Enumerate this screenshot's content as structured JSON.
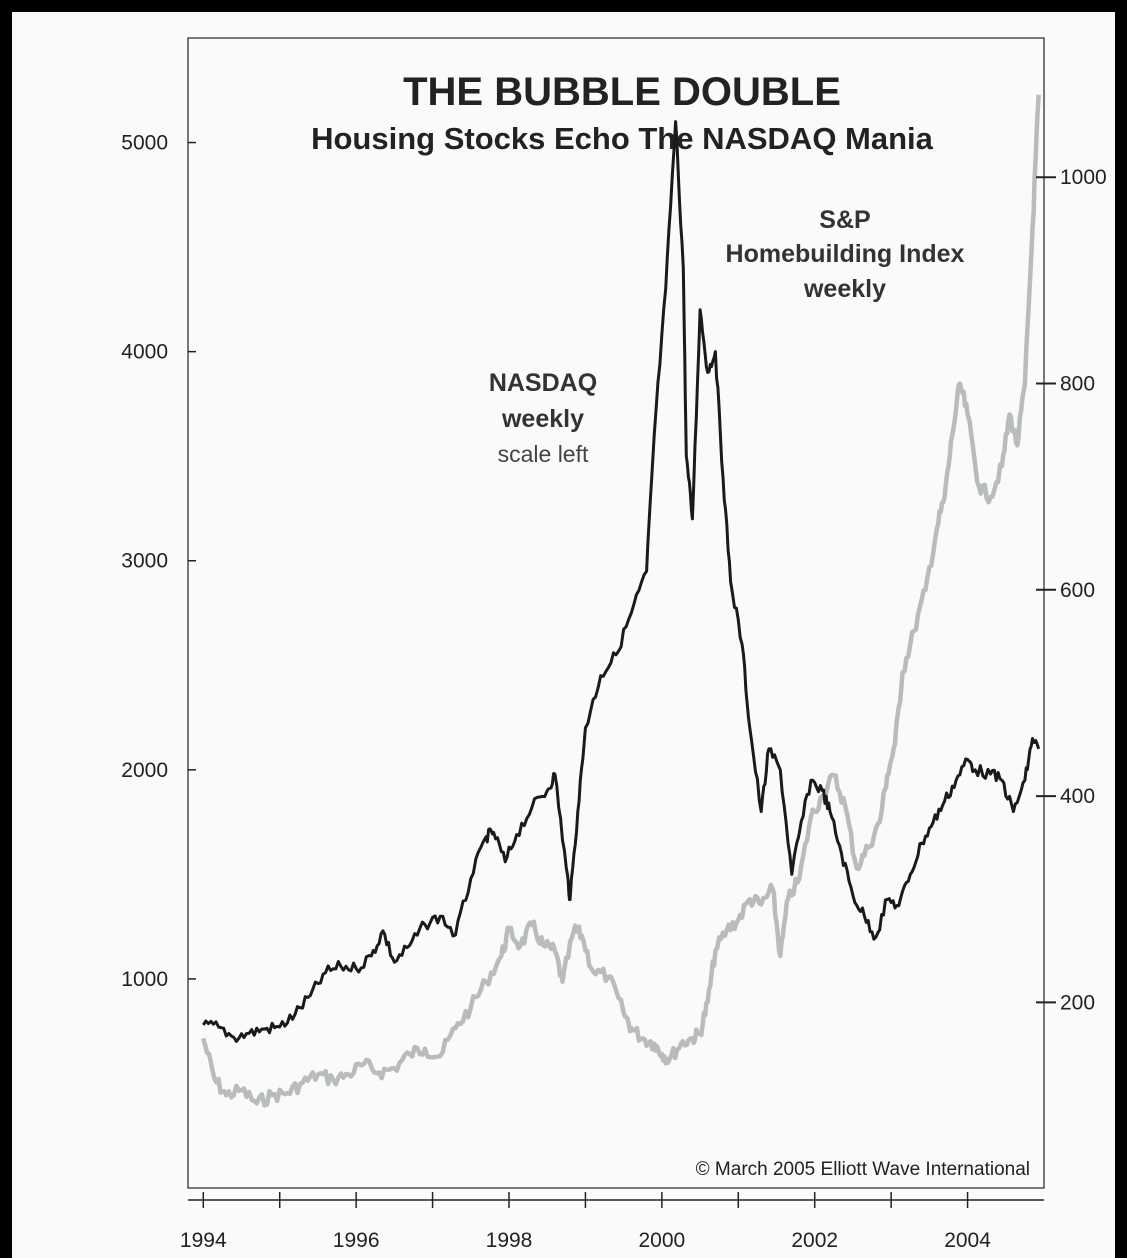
{
  "chart_data": {
    "type": "line",
    "title": "THE BUBBLE DOUBLE",
    "subtitle": "Housing Stocks Echo The NASDAQ Mania",
    "x_range": [
      1993.8,
      2005.0
    ],
    "x_ticks": [
      "1994",
      "1996",
      "1998",
      "2000",
      "2002",
      "2004"
    ],
    "x_tick_values": [
      1994,
      1996,
      1998,
      2000,
      2002,
      2004
    ],
    "y_left": {
      "range": [
        0,
        5500
      ],
      "ticks": [
        "1000",
        "2000",
        "3000",
        "4000",
        "5000"
      ],
      "tick_values": [
        1000,
        2000,
        3000,
        4000,
        5000
      ]
    },
    "y_right": {
      "range": [
        20,
        1135
      ],
      "ticks": [
        "200",
        "400",
        "600",
        "800",
        "1000"
      ],
      "tick_values": [
        200,
        400,
        600,
        800,
        1000
      ]
    },
    "grid": false,
    "series": [
      {
        "name": "NASDAQ",
        "label_lines": [
          "NASDAQ",
          "weekly",
          "scale left"
        ],
        "axis": "left",
        "color": "#1a1a1a",
        "points": [
          [
            1994.0,
            780
          ],
          [
            1994.2,
            770
          ],
          [
            1994.4,
            720
          ],
          [
            1994.6,
            740
          ],
          [
            1994.8,
            760
          ],
          [
            1995.0,
            770
          ],
          [
            1995.2,
            830
          ],
          [
            1995.4,
            920
          ],
          [
            1995.6,
            1030
          ],
          [
            1995.8,
            1060
          ],
          [
            1996.0,
            1050
          ],
          [
            1996.2,
            1110
          ],
          [
            1996.35,
            1230
          ],
          [
            1996.5,
            1080
          ],
          [
            1996.7,
            1160
          ],
          [
            1996.9,
            1260
          ],
          [
            1997.1,
            1300
          ],
          [
            1997.3,
            1210
          ],
          [
            1997.5,
            1480
          ],
          [
            1997.7,
            1680
          ],
          [
            1997.8,
            1700
          ],
          [
            1997.95,
            1560
          ],
          [
            1998.1,
            1690
          ],
          [
            1998.3,
            1820
          ],
          [
            1998.5,
            1900
          ],
          [
            1998.6,
            1980
          ],
          [
            1998.75,
            1530
          ],
          [
            1998.8,
            1380
          ],
          [
            1998.9,
            1800
          ],
          [
            1999.0,
            2200
          ],
          [
            1999.2,
            2450
          ],
          [
            1999.4,
            2550
          ],
          [
            1999.6,
            2750
          ],
          [
            1999.8,
            2950
          ],
          [
            1999.9,
            3600
          ],
          [
            2000.05,
            4300
          ],
          [
            2000.18,
            5100
          ],
          [
            2000.28,
            4400
          ],
          [
            2000.32,
            3500
          ],
          [
            2000.4,
            3200
          ],
          [
            2000.5,
            4200
          ],
          [
            2000.6,
            3900
          ],
          [
            2000.7,
            4000
          ],
          [
            2000.8,
            3400
          ],
          [
            2000.9,
            2900
          ],
          [
            2001.05,
            2600
          ],
          [
            2001.15,
            2200
          ],
          [
            2001.3,
            1800
          ],
          [
            2001.4,
            2100
          ],
          [
            2001.55,
            2000
          ],
          [
            2001.7,
            1500
          ],
          [
            2001.8,
            1700
          ],
          [
            2001.95,
            1950
          ],
          [
            2002.1,
            1900
          ],
          [
            2002.2,
            1800
          ],
          [
            2002.35,
            1600
          ],
          [
            2002.5,
            1400
          ],
          [
            2002.65,
            1300
          ],
          [
            2002.8,
            1200
          ],
          [
            2002.95,
            1380
          ],
          [
            2003.1,
            1350
          ],
          [
            2003.25,
            1500
          ],
          [
            2003.4,
            1650
          ],
          [
            2003.55,
            1750
          ],
          [
            2003.7,
            1850
          ],
          [
            2003.85,
            1950
          ],
          [
            2004.0,
            2050
          ],
          [
            2004.1,
            2000
          ],
          [
            2004.3,
            1980
          ],
          [
            2004.45,
            1950
          ],
          [
            2004.6,
            1800
          ],
          [
            2004.75,
            1950
          ],
          [
            2004.85,
            2150
          ],
          [
            2004.93,
            2100
          ]
        ]
      },
      {
        "name": "S&P Homebuilding Index",
        "label_lines": [
          "S&P",
          "Homebuilding Index",
          "weekly"
        ],
        "axis": "right",
        "color": "#b8bcba",
        "points": [
          [
            1994.0,
            165
          ],
          [
            1994.15,
            125
          ],
          [
            1994.3,
            110
          ],
          [
            1994.5,
            115
          ],
          [
            1994.7,
            102
          ],
          [
            1994.9,
            110
          ],
          [
            1995.1,
            112
          ],
          [
            1995.3,
            122
          ],
          [
            1995.5,
            130
          ],
          [
            1995.7,
            125
          ],
          [
            1995.9,
            130
          ],
          [
            1996.1,
            140
          ],
          [
            1996.3,
            132
          ],
          [
            1996.5,
            136
          ],
          [
            1996.7,
            150
          ],
          [
            1996.9,
            155
          ],
          [
            1997.1,
            148
          ],
          [
            1997.3,
            175
          ],
          [
            1997.5,
            195
          ],
          [
            1997.7,
            220
          ],
          [
            1997.9,
            245
          ],
          [
            1998.0,
            270
          ],
          [
            1998.15,
            255
          ],
          [
            1998.3,
            275
          ],
          [
            1998.45,
            255
          ],
          [
            1998.6,
            250
          ],
          [
            1998.7,
            220
          ],
          [
            1998.85,
            270
          ],
          [
            1998.95,
            265
          ],
          [
            1999.1,
            230
          ],
          [
            1999.3,
            225
          ],
          [
            1999.5,
            190
          ],
          [
            1999.6,
            175
          ],
          [
            1999.75,
            165
          ],
          [
            1999.9,
            160
          ],
          [
            2000.0,
            150
          ],
          [
            2000.1,
            145
          ],
          [
            2000.25,
            160
          ],
          [
            2000.4,
            165
          ],
          [
            2000.5,
            170
          ],
          [
            2000.6,
            200
          ],
          [
            2000.7,
            250
          ],
          [
            2000.85,
            270
          ],
          [
            2001.0,
            280
          ],
          [
            2001.15,
            300
          ],
          [
            2001.3,
            295
          ],
          [
            2001.45,
            310
          ],
          [
            2001.55,
            245
          ],
          [
            2001.65,
            300
          ],
          [
            2001.8,
            320
          ],
          [
            2001.95,
            380
          ],
          [
            2002.1,
            400
          ],
          [
            2002.25,
            420
          ],
          [
            2002.4,
            390
          ],
          [
            2002.55,
            330
          ],
          [
            2002.7,
            350
          ],
          [
            2002.85,
            375
          ],
          [
            2002.95,
            420
          ],
          [
            2003.05,
            450
          ],
          [
            2003.15,
            520
          ],
          [
            2003.3,
            560
          ],
          [
            2003.45,
            600
          ],
          [
            2003.6,
            660
          ],
          [
            2003.7,
            690
          ],
          [
            2003.8,
            750
          ],
          [
            2003.9,
            800
          ],
          [
            2004.0,
            770
          ],
          [
            2004.15,
            700
          ],
          [
            2004.3,
            690
          ],
          [
            2004.45,
            720
          ],
          [
            2004.55,
            770
          ],
          [
            2004.65,
            740
          ],
          [
            2004.75,
            800
          ],
          [
            2004.85,
            950
          ],
          [
            2004.93,
            1080
          ]
        ]
      }
    ],
    "annotations": [
      "© March 2005 Elliott Wave International"
    ]
  }
}
